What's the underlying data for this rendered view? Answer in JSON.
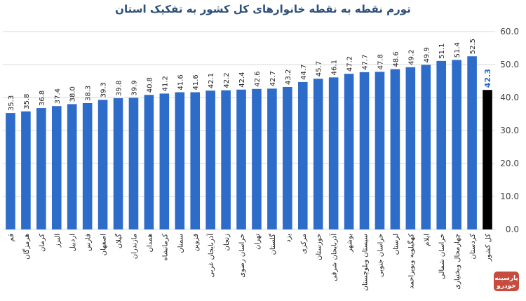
{
  "chart_data": {
    "type": "bar",
    "title": "تورم نقطه به نقطه خانوارهای کل کشور به تفکیک استان",
    "categories": [
      "قم",
      "هرمزگان",
      "کرمان",
      "البرز",
      "اردبیل",
      "فارس",
      "اصفهان",
      "گیلان",
      "مازندران",
      "همدان",
      "کرمانشاه",
      "سمنان",
      "قزوین",
      "آذربایجان غربی",
      "زنجان",
      "خراسان رضوی",
      "تهران",
      "گلستان",
      "یزد",
      "مرکزی",
      "خوزستان",
      "آذربایجان شرقی",
      "بوشهر",
      "سیستان وبلوچستان",
      "خراسان جنوبی",
      "لرستان",
      "کهگیلویه وبویراحمد",
      "ایلام",
      "خراسان شمالی",
      "چهارمحال وبختیاری",
      "کردستان",
      "کل کشور"
    ],
    "values": [
      35.3,
      35.8,
      36.8,
      37.4,
      38.0,
      38.3,
      39.3,
      39.8,
      39.9,
      40.8,
      41.2,
      41.6,
      41.6,
      42.1,
      42.2,
      42.4,
      42.6,
      42.7,
      43.2,
      44.7,
      45.7,
      46.1,
      47.2,
      47.7,
      47.8,
      48.6,
      49.2,
      49.9,
      51.1,
      51.4,
      52.5,
      42.3
    ],
    "value_labels": [
      "35.3",
      "35.8",
      "36.8",
      "37.4",
      "38.0",
      "38.3",
      "39.3",
      "39.8",
      "39.9",
      "40.8",
      "41.2",
      "41.6",
      "41.6",
      "42.1",
      "42.2",
      "42.4",
      "42.6",
      "42.7",
      "43.2",
      "44.7",
      "45.7",
      "46.1",
      "47.2",
      "47.7",
      "47.8",
      "48.6",
      "49.2",
      "49.9",
      "51.1",
      "51.4",
      "52.5",
      "42.3"
    ],
    "highlight_index": 31,
    "ylim": [
      0,
      60
    ],
    "yticks": [
      "0.0",
      "10.0",
      "20.0",
      "30.0",
      "40.0",
      "50.0",
      "60.0"
    ],
    "y_axis_position": "right",
    "grid": true,
    "colors": {
      "bar": "#2e6cc9",
      "highlight_bar": "#000000",
      "highlight_label": "#2e6cc9",
      "grid": "#d9d9d9",
      "title": "#2e4f7a"
    }
  },
  "watermark": {
    "text_line1": "پارسینه",
    "text_line2": "خودرو",
    "color": "#c0392b"
  }
}
